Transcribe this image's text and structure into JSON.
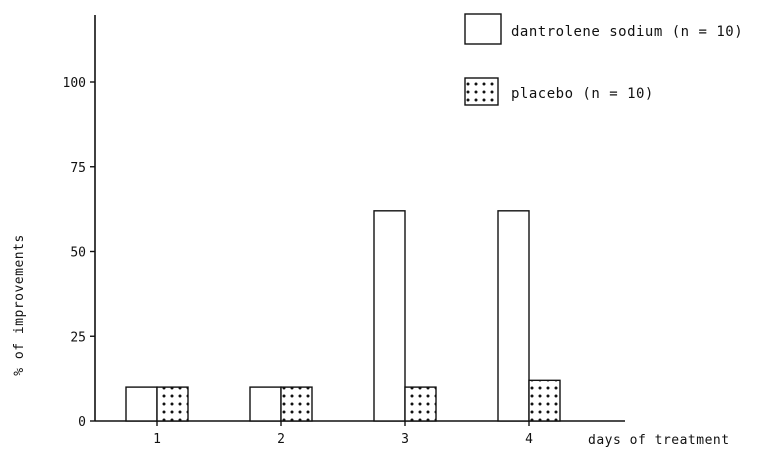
{
  "chart_data": {
    "type": "bar",
    "categories": [
      "1",
      "2",
      "3",
      "4"
    ],
    "series": [
      {
        "name": "dantrolene sodium (n = 10)",
        "values": [
          10,
          10,
          62,
          62
        ],
        "pattern": "plain"
      },
      {
        "name": "placebo (n = 10)",
        "values": [
          10,
          10,
          10,
          12
        ],
        "pattern": "dotted"
      }
    ],
    "xlabel": "days of treatment",
    "ylabel": "% of improvements",
    "yticks": [
      0,
      25,
      50,
      75,
      100
    ],
    "ylim": [
      0,
      110
    ],
    "grid": false,
    "legend_position": "top-right",
    "colors": {
      "ink": "#111111",
      "background": "#ffffff"
    }
  }
}
